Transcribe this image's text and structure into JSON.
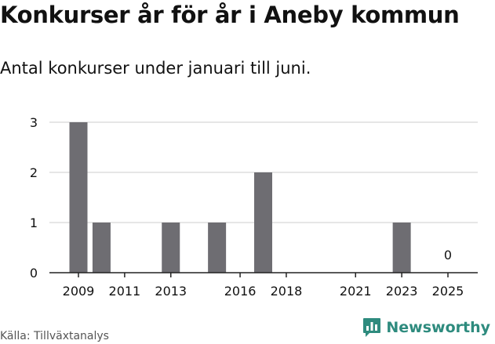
{
  "colors": {
    "bar": "#6e6d72",
    "grid": "#dddddd",
    "axis": "#222222",
    "text": "#111111",
    "brand": "#2e8b7e"
  },
  "footer": {
    "source": "Källa: Tillväxtanalys",
    "brand_name": "Newsworthy",
    "brand_icon": "newsworthy-logo-icon"
  },
  "chart_data": {
    "type": "bar",
    "title": "Konkurser år för år i Aneby kommun",
    "subtitle": "Antal konkurser under januari till juni.",
    "xlabel": "",
    "ylabel": "",
    "x": [
      2009,
      2010,
      2011,
      2012,
      2013,
      2014,
      2015,
      2016,
      2017,
      2018,
      2019,
      2020,
      2021,
      2022,
      2023,
      2024,
      2025
    ],
    "values": [
      3,
      1,
      0,
      0,
      1,
      0,
      1,
      0,
      2,
      0,
      0,
      0,
      0,
      0,
      1,
      0,
      0
    ],
    "xlim": [
      2009,
      2025
    ],
    "ylim": [
      0,
      3
    ],
    "x_ticks": [
      2009,
      2011,
      2013,
      2016,
      2018,
      2021,
      2023,
      2025
    ],
    "y_ticks": [
      0,
      1,
      2,
      3
    ],
    "annotations": [
      {
        "x": 2025,
        "text": "0"
      }
    ],
    "grid": true,
    "legend": "none"
  }
}
